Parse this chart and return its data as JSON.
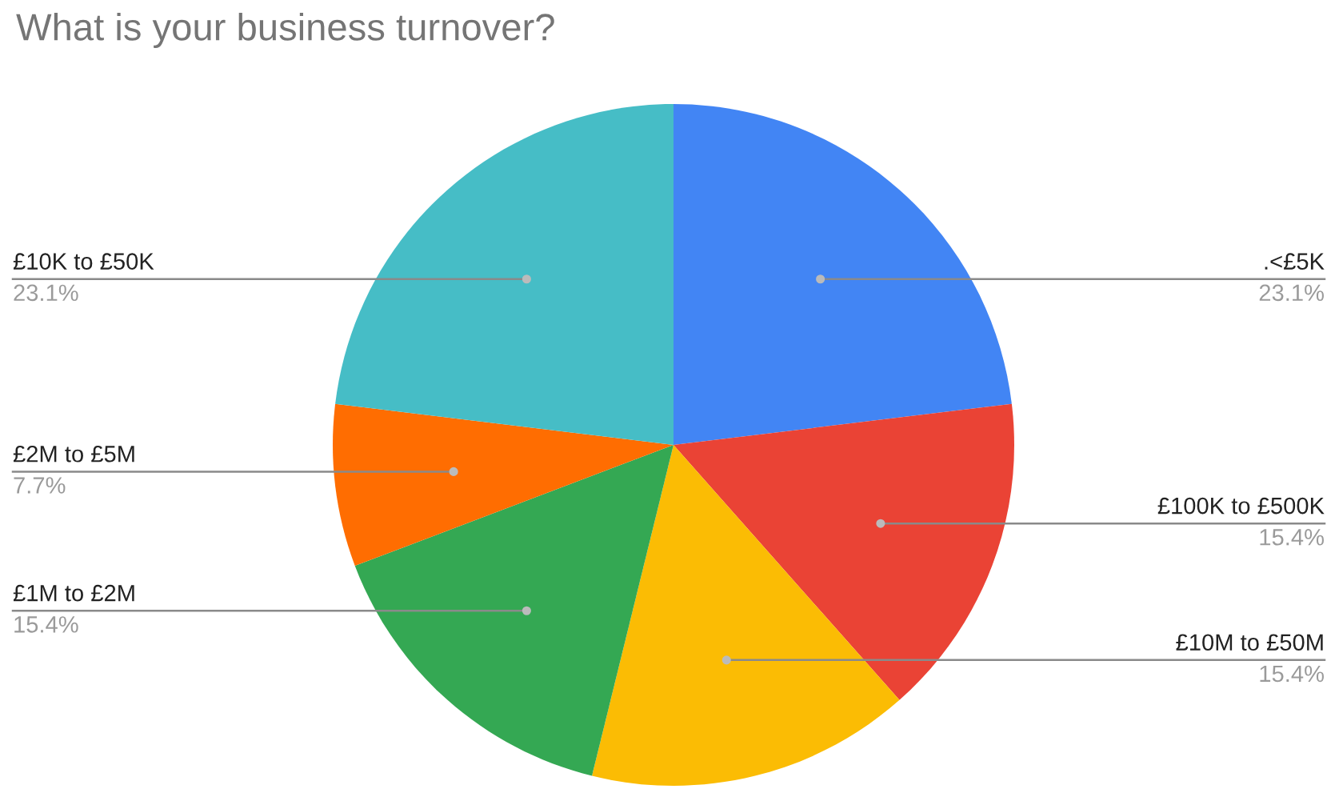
{
  "chart_data": {
    "type": "pie",
    "title": "What is your business turnover?",
    "categories": [
      ".<£5K",
      "£100K to £500K",
      "£10M to £50M",
      "£1M to £2M",
      "£2M to £5M",
      "£10K to £50K"
    ],
    "values": [
      23.1,
      15.4,
      15.4,
      15.4,
      7.7,
      23.1
    ],
    "value_labels": [
      "23.1%",
      "15.4%",
      "15.4%",
      "15.4%",
      "7.7%",
      "23.1%"
    ],
    "colors": [
      "#4285f4",
      "#ea4335",
      "#fbbc04",
      "#34a853",
      "#ff6d01",
      "#46bdc6"
    ]
  }
}
